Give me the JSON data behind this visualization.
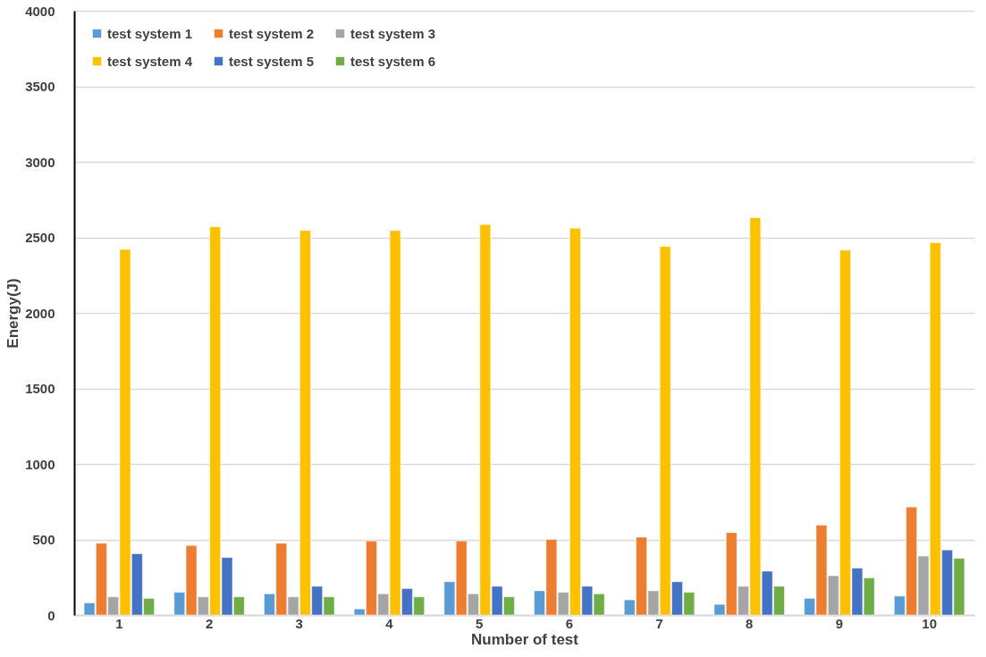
{
  "chart_data": {
    "type": "bar",
    "xlabel": "Number of test",
    "ylabel": "Energy(J)",
    "categories": [
      "1",
      "2",
      "3",
      "4",
      "5",
      "6",
      "7",
      "8",
      "9",
      "10"
    ],
    "series": [
      {
        "name": "test system 1",
        "color": "#5b9bd5",
        "values": [
          80,
          150,
          140,
          40,
          220,
          160,
          100,
          70,
          110,
          125
        ]
      },
      {
        "name": "test system 2",
        "color": "#ed7d31",
        "values": [
          475,
          460,
          475,
          490,
          490,
          500,
          515,
          545,
          595,
          715
        ]
      },
      {
        "name": "test system 3",
        "color": "#a5a5a5",
        "values": [
          120,
          120,
          120,
          140,
          140,
          150,
          160,
          190,
          260,
          390
        ]
      },
      {
        "name": "test system 4",
        "color": "#ffc000",
        "values": [
          2420,
          2570,
          2545,
          2545,
          2585,
          2560,
          2440,
          2630,
          2415,
          2465
        ]
      },
      {
        "name": "test system 5",
        "color": "#4472c4",
        "values": [
          405,
          380,
          190,
          175,
          190,
          190,
          220,
          290,
          310,
          430
        ]
      },
      {
        "name": "test system 6",
        "color": "#70ad47",
        "values": [
          110,
          120,
          120,
          120,
          120,
          140,
          150,
          190,
          245,
          375
        ]
      }
    ],
    "ylim": [
      0,
      4000
    ],
    "yticks": [
      0,
      500,
      1000,
      1500,
      2000,
      2500,
      3000,
      3500,
      4000
    ],
    "grid": "y",
    "legend": "top left"
  }
}
